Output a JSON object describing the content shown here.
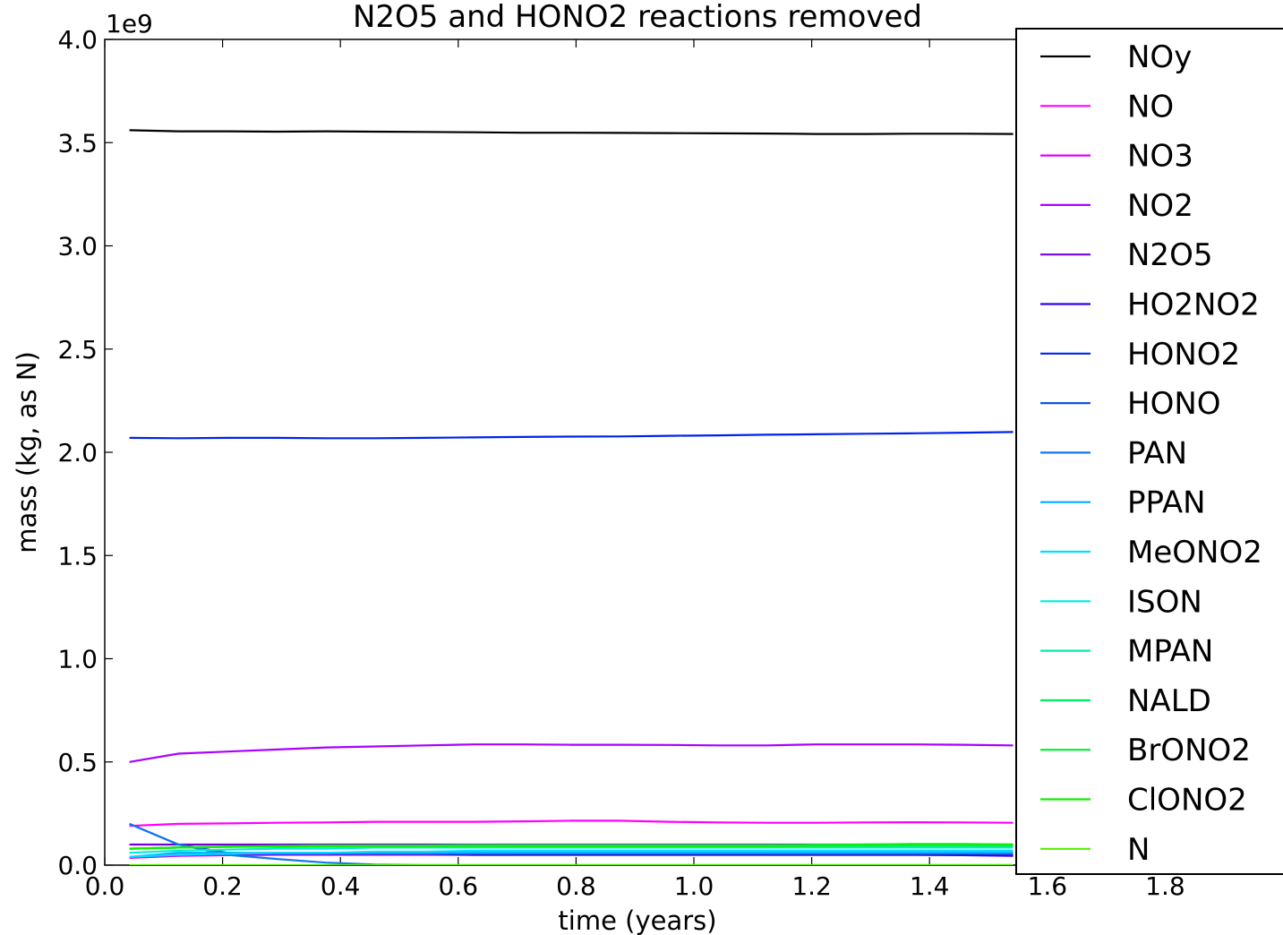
{
  "chart_data": {
    "type": "line",
    "title": "N2O5 and HONO2 reactions removed",
    "xlabel": "time (years)",
    "ylabel": "mass (kg, as N)",
    "y_scale_label": "1e9",
    "xlim": [
      0.0,
      2.0
    ],
    "ylim": [
      0.0,
      4.0
    ],
    "xticks": [
      "0.0",
      "0.2",
      "0.4",
      "0.6",
      "0.8",
      "1.0",
      "1.2",
      "1.4",
      "1.6",
      "1.8"
    ],
    "xtick_values": [
      0.0,
      0.2,
      0.4,
      0.6,
      0.8,
      1.0,
      1.2,
      1.4,
      1.6,
      1.8
    ],
    "yticks": [
      "0.0",
      "0.5",
      "1.0",
      "1.5",
      "2.0",
      "2.5",
      "3.0",
      "3.5",
      "4.0"
    ],
    "ytick_values": [
      0.0,
      0.5,
      1.0,
      1.5,
      2.0,
      2.5,
      3.0,
      3.5,
      4.0
    ],
    "grid": false,
    "legend_position": "right",
    "x": [
      0.042,
      0.125,
      0.208,
      0.292,
      0.375,
      0.458,
      0.542,
      0.625,
      0.708,
      0.792,
      0.875,
      0.958,
      1.042,
      1.125,
      1.208,
      1.292,
      1.375,
      1.458,
      1.542
    ],
    "series": [
      {
        "name": "NOy",
        "color": "#000000",
        "values": [
          3.56,
          3.555,
          3.555,
          3.553,
          3.555,
          3.553,
          3.552,
          3.55,
          3.548,
          3.548,
          3.547,
          3.546,
          3.545,
          3.544,
          3.542,
          3.542,
          3.543,
          3.543,
          3.542
        ]
      },
      {
        "name": "NO",
        "color": "#ff00ff",
        "values": [
          0.19,
          0.2,
          0.202,
          0.205,
          0.207,
          0.21,
          0.21,
          0.21,
          0.212,
          0.215,
          0.215,
          0.21,
          0.207,
          0.205,
          0.205,
          0.207,
          0.208,
          0.207,
          0.205
        ]
      },
      {
        "name": "NO3",
        "color": "#dd00ff",
        "values": [
          0.035,
          0.045,
          0.048,
          0.05,
          0.05,
          0.05,
          0.05,
          0.05,
          0.05,
          0.05,
          0.05,
          0.05,
          0.05,
          0.05,
          0.05,
          0.05,
          0.05,
          0.05,
          0.05
        ]
      },
      {
        "name": "NO2",
        "color": "#aa00ff",
        "values": [
          0.5,
          0.54,
          0.55,
          0.56,
          0.57,
          0.575,
          0.58,
          0.585,
          0.585,
          0.583,
          0.583,
          0.582,
          0.58,
          0.58,
          0.585,
          0.585,
          0.585,
          0.583,
          0.58
        ]
      },
      {
        "name": "N2O5",
        "color": "#7700dd",
        "values": [
          0.1,
          0.1,
          0.1,
          0.1,
          0.1,
          0.1,
          0.1,
          0.1,
          0.1,
          0.1,
          0.1,
          0.1,
          0.1,
          0.1,
          0.1,
          0.1,
          0.1,
          0.1,
          0.1
        ]
      },
      {
        "name": "HO2NO2",
        "color": "#3300ee",
        "values": [
          0.04,
          0.05,
          0.055,
          0.055,
          0.055,
          0.055,
          0.055,
          0.05,
          0.05,
          0.05,
          0.05,
          0.05,
          0.05,
          0.05,
          0.05,
          0.05,
          0.05,
          0.048,
          0.045
        ]
      },
      {
        "name": "HONO2",
        "color": "#0022ee",
        "values": [
          2.07,
          2.068,
          2.07,
          2.07,
          2.068,
          2.068,
          2.07,
          2.072,
          2.074,
          2.076,
          2.077,
          2.08,
          2.082,
          2.085,
          2.087,
          2.09,
          2.092,
          2.095,
          2.098
        ]
      },
      {
        "name": "HONO",
        "color": "#1155dd",
        "values": [
          0.2,
          0.1,
          0.06,
          0.055,
          0.055,
          0.055,
          0.055,
          0.055,
          0.055,
          0.055,
          0.055,
          0.055,
          0.055,
          0.055,
          0.055,
          0.055,
          0.055,
          0.055,
          0.055
        ]
      },
      {
        "name": "PAN",
        "color": "#1177ee",
        "values": [
          0.2,
          0.1,
          0.05,
          0.03,
          0.012,
          0.003,
          0.0,
          0.0,
          0.0,
          0.0,
          0.0,
          0.0,
          0.0,
          0.0,
          0.0,
          0.0,
          0.0,
          0.0,
          0.0
        ]
      },
      {
        "name": "PPAN",
        "color": "#00aaff",
        "values": [
          0.04,
          0.06,
          0.06,
          0.06,
          0.06,
          0.06,
          0.06,
          0.06,
          0.06,
          0.06,
          0.06,
          0.06,
          0.06,
          0.06,
          0.06,
          0.06,
          0.06,
          0.06,
          0.06
        ]
      },
      {
        "name": "MeONO2",
        "color": "#00ddff",
        "values": [
          0.04,
          0.05,
          0.055,
          0.06,
          0.06,
          0.065,
          0.065,
          0.07,
          0.07,
          0.07,
          0.07,
          0.07,
          0.07,
          0.07,
          0.07,
          0.07,
          0.07,
          0.07,
          0.07
        ]
      },
      {
        "name": "ISON",
        "color": "#00eedd",
        "values": [
          0.06,
          0.07,
          0.075,
          0.08,
          0.08,
          0.085,
          0.085,
          0.085,
          0.085,
          0.085,
          0.085,
          0.085,
          0.085,
          0.085,
          0.085,
          0.085,
          0.085,
          0.085,
          0.085
        ]
      },
      {
        "name": "MPAN",
        "color": "#00eeaa",
        "values": [
          0.08,
          0.085,
          0.09,
          0.09,
          0.09,
          0.09,
          0.09,
          0.09,
          0.09,
          0.09,
          0.09,
          0.09,
          0.09,
          0.09,
          0.09,
          0.09,
          0.09,
          0.09,
          0.09
        ]
      },
      {
        "name": "NALD",
        "color": "#00ee66",
        "values": [
          0.08,
          0.085,
          0.09,
          0.092,
          0.095,
          0.095,
          0.095,
          0.097,
          0.097,
          0.097,
          0.097,
          0.097,
          0.097,
          0.097,
          0.098,
          0.1,
          0.1,
          0.1,
          0.1
        ]
      },
      {
        "name": "BrONO2",
        "color": "#00ee33",
        "values": [
          0.08,
          0.085,
          0.09,
          0.092,
          0.095,
          0.095,
          0.095,
          0.095,
          0.095,
          0.095,
          0.095,
          0.095,
          0.095,
          0.095,
          0.098,
          0.1,
          0.103,
          0.103,
          0.1
        ]
      },
      {
        "name": "ClONO2",
        "color": "#11ee00",
        "values": [
          0.08,
          0.085,
          0.088,
          0.09,
          0.092,
          0.093,
          0.093,
          0.093,
          0.092,
          0.092,
          0.092,
          0.092,
          0.092,
          0.092,
          0.094,
          0.096,
          0.098,
          0.098,
          0.097
        ]
      },
      {
        "name": "N",
        "color": "#55ee00",
        "values": [
          0.0,
          0.0,
          0.0,
          0.0,
          0.0,
          0.0,
          0.0,
          0.0,
          0.0,
          0.0,
          0.0,
          0.0,
          0.0,
          0.0,
          0.0,
          0.0,
          0.0,
          0.0,
          0.0
        ]
      }
    ]
  }
}
